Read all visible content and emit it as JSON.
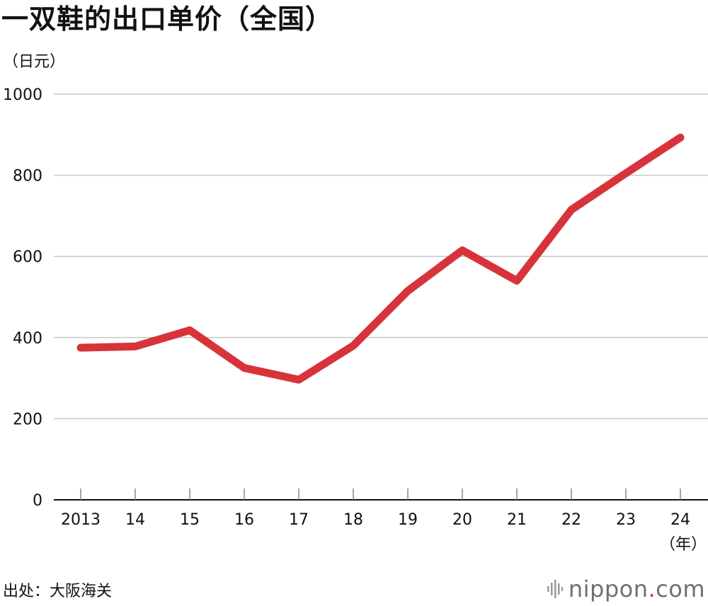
{
  "title": "一双鞋的出口单价（全国）",
  "unit_label": "（日元）",
  "x_unit_label": "（年）",
  "source": "出处：大阪海关",
  "brand": {
    "name": "nippon",
    "dot": ".",
    "suffix": "com"
  },
  "chart_data": {
    "type": "line",
    "title": "一双鞋的出口单价（全国）",
    "ylabel": "（日元）",
    "xlabel": "（年）",
    "categories": [
      "2013",
      "14",
      "15",
      "16",
      "17",
      "18",
      "19",
      "20",
      "21",
      "22",
      "23",
      "24"
    ],
    "series": [
      {
        "values": [
          375,
          378,
          418,
          325,
          296,
          380,
          515,
          615,
          540,
          715,
          805,
          893
        ]
      }
    ],
    "ylim": [
      0,
      1000
    ],
    "yticks": [
      "0",
      "200",
      "400",
      "600",
      "800",
      "1000"
    ],
    "grid": true,
    "line_color": "#d8333a"
  }
}
